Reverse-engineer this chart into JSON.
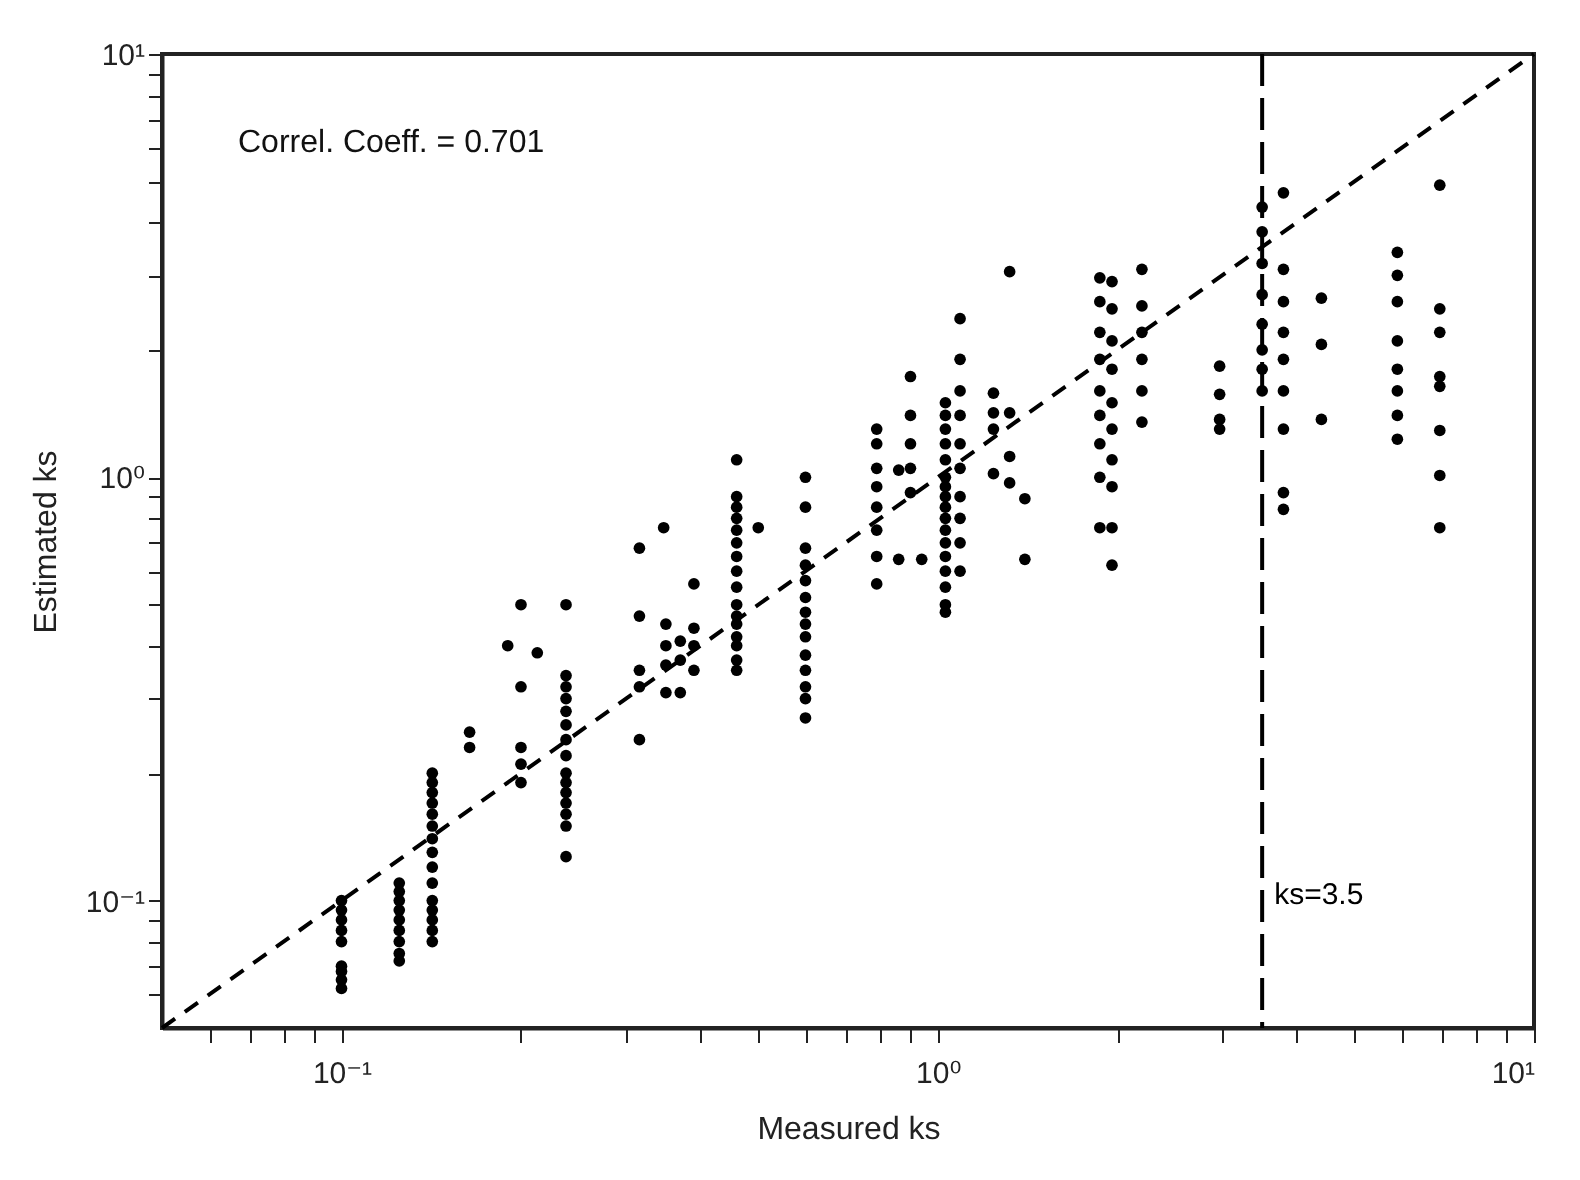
{
  "chart_data": {
    "type": "scatter",
    "xlabel": "Measured ks",
    "ylabel": "Estimated ks",
    "annotations": [
      "Correl. Coeff. = 0.701"
    ],
    "xlim": [
      0.05,
      10
    ],
    "ylim": [
      0.05,
      10
    ],
    "xticks": [
      {
        "value": 0.06,
        "label": null
      },
      {
        "value": 0.07,
        "label": null
      },
      {
        "value": 0.08,
        "label": null
      },
      {
        "value": 0.09,
        "label": null
      },
      {
        "value": 0.1,
        "label": "10⁻¹"
      },
      {
        "value": 0.2,
        "label": null
      },
      {
        "value": 0.3,
        "label": null
      },
      {
        "value": 0.4,
        "label": null
      },
      {
        "value": 0.5,
        "label": null
      },
      {
        "value": 0.6,
        "label": null
      },
      {
        "value": 0.7,
        "label": null
      },
      {
        "value": 0.8,
        "label": null
      },
      {
        "value": 0.9,
        "label": null
      },
      {
        "value": 1,
        "label": "10⁰"
      },
      {
        "value": 2,
        "label": null
      },
      {
        "value": 3,
        "label": null
      },
      {
        "value": 4,
        "label": null
      },
      {
        "value": 5,
        "label": null
      },
      {
        "value": 6,
        "label": null
      },
      {
        "value": 7,
        "label": null
      },
      {
        "value": 8,
        "label": null
      },
      {
        "value": 9,
        "label": null
      },
      {
        "value": 10,
        "label": "10¹"
      }
    ],
    "yticks": [
      {
        "value": 0.06,
        "label": null
      },
      {
        "value": 0.07,
        "label": null
      },
      {
        "value": 0.08,
        "label": null
      },
      {
        "value": 0.09,
        "label": null
      },
      {
        "value": 0.1,
        "label": "10⁻¹"
      },
      {
        "value": 0.2,
        "label": null
      },
      {
        "value": 0.3,
        "label": null
      },
      {
        "value": 0.4,
        "label": null
      },
      {
        "value": 0.5,
        "label": null
      },
      {
        "value": 0.6,
        "label": null
      },
      {
        "value": 0.7,
        "label": null
      },
      {
        "value": 0.8,
        "label": null
      },
      {
        "value": 0.9,
        "label": null
      },
      {
        "value": 1,
        "label": "10⁰"
      },
      {
        "value": 2,
        "label": null
      },
      {
        "value": 3,
        "label": null
      },
      {
        "value": 4,
        "label": null
      },
      {
        "value": 5,
        "label": null
      },
      {
        "value": 6,
        "label": null
      },
      {
        "value": 7,
        "label": null
      },
      {
        "value": 8,
        "label": null
      },
      {
        "value": 9,
        "label": null
      },
      {
        "value": 10,
        "label": "10¹"
      }
    ],
    "log": "xy",
    "grid": false,
    "marker": "circle",
    "ref_lines": [
      {
        "axis": "x",
        "value": 3.5,
        "label": "ks=3.5",
        "color": "#000000",
        "line_style": "dashed"
      }
    ],
    "series": [
      {
        "color": "#000000",
        "x": [
          0.1,
          0.1,
          0.1,
          0.1,
          0.1,
          0.1,
          0.1,
          0.1,
          0.1,
          0.125,
          0.125,
          0.125,
          0.125,
          0.125,
          0.125,
          0.125,
          0.125,
          0.125,
          0.142,
          0.142,
          0.142,
          0.142,
          0.142,
          0.142,
          0.142,
          0.142,
          0.142,
          0.142,
          0.142,
          0.142,
          0.142,
          0.142,
          0.142,
          0.164,
          0.164,
          0.19,
          0.2,
          0.2,
          0.2,
          0.2,
          0.2,
          0.213,
          0.238,
          0.238,
          0.238,
          0.238,
          0.238,
          0.238,
          0.238,
          0.238,
          0.238,
          0.238,
          0.238,
          0.238,
          0.238,
          0.238,
          0.238,
          0.316,
          0.316,
          0.316,
          0.316,
          0.316,
          0.35,
          0.35,
          0.35,
          0.35,
          0.347,
          0.37,
          0.37,
          0.37,
          0.39,
          0.39,
          0.39,
          0.39,
          0.46,
          0.46,
          0.46,
          0.46,
          0.46,
          0.46,
          0.46,
          0.46,
          0.46,
          0.46,
          0.46,
          0.46,
          0.46,
          0.46,
          0.46,
          0.46,
          0.5,
          0.6,
          0.6,
          0.6,
          0.6,
          0.6,
          0.6,
          0.6,
          0.6,
          0.6,
          0.6,
          0.6,
          0.6,
          0.6,
          0.6,
          0.79,
          0.79,
          0.79,
          0.79,
          0.79,
          0.79,
          0.79,
          0.79,
          0.86,
          0.86,
          0.9,
          0.9,
          0.9,
          0.9,
          0.9,
          0.94,
          1.03,
          1.03,
          1.03,
          1.03,
          1.03,
          1.03,
          1.03,
          1.03,
          1.03,
          1.03,
          1.03,
          1.03,
          1.03,
          1.03,
          1.03,
          1.03,
          1.03,
          1.09,
          1.09,
          1.09,
          1.09,
          1.09,
          1.09,
          1.09,
          1.09,
          1.09,
          1.09,
          1.24,
          1.24,
          1.24,
          1.24,
          1.32,
          1.32,
          1.32,
          1.32,
          1.4,
          1.4,
          1.87,
          1.87,
          1.87,
          1.87,
          1.87,
          1.87,
          1.87,
          1.87,
          1.87,
          1.96,
          1.96,
          1.96,
          1.96,
          1.96,
          1.96,
          1.96,
          1.96,
          1.96,
          1.96,
          2.2,
          2.2,
          2.2,
          2.2,
          2.2,
          2.2,
          2.97,
          2.97,
          2.97,
          2.97,
          3.5,
          3.5,
          3.5,
          3.5,
          3.5,
          3.5,
          3.5,
          3.5,
          3.8,
          3.8,
          3.8,
          3.8,
          3.8,
          3.8,
          3.8,
          3.8,
          3.8,
          4.4,
          4.4,
          4.4,
          5.9,
          5.9,
          5.9,
          5.9,
          5.9,
          5.9,
          5.9,
          5.9,
          6.95,
          6.95,
          6.95,
          6.95,
          6.95,
          6.95,
          6.95,
          6.95
        ],
        "values": [
          0.1,
          0.095,
          0.09,
          0.085,
          0.08,
          0.07,
          0.068,
          0.065,
          0.062,
          0.11,
          0.105,
          0.1,
          0.095,
          0.09,
          0.085,
          0.08,
          0.075,
          0.072,
          0.2,
          0.19,
          0.18,
          0.17,
          0.16,
          0.15,
          0.14,
          0.13,
          0.12,
          0.11,
          0.1,
          0.095,
          0.09,
          0.085,
          0.08,
          0.25,
          0.23,
          0.4,
          0.5,
          0.32,
          0.23,
          0.21,
          0.19,
          0.385,
          0.5,
          0.34,
          0.32,
          0.3,
          0.28,
          0.26,
          0.24,
          0.22,
          0.2,
          0.19,
          0.18,
          0.17,
          0.16,
          0.15,
          0.127,
          0.68,
          0.47,
          0.35,
          0.32,
          0.24,
          0.45,
          0.4,
          0.36,
          0.31,
          0.76,
          0.41,
          0.37,
          0.31,
          0.56,
          0.44,
          0.4,
          0.35,
          1.1,
          0.9,
          0.85,
          0.8,
          0.75,
          0.7,
          0.65,
          0.6,
          0.55,
          0.5,
          0.47,
          0.45,
          0.42,
          0.4,
          0.37,
          0.35,
          0.76,
          1.0,
          0.85,
          0.68,
          0.62,
          0.57,
          0.52,
          0.48,
          0.45,
          0.42,
          0.38,
          0.35,
          0.32,
          0.3,
          0.27,
          1.3,
          1.2,
          1.05,
          0.95,
          0.85,
          0.75,
          0.65,
          0.56,
          1.04,
          0.64,
          1.73,
          1.4,
          1.2,
          1.05,
          0.92,
          0.64,
          1.5,
          1.4,
          1.3,
          1.2,
          1.1,
          1.0,
          0.95,
          0.9,
          0.85,
          0.8,
          0.75,
          0.7,
          0.65,
          0.6,
          0.55,
          0.5,
          0.48,
          2.37,
          1.9,
          1.6,
          1.4,
          1.2,
          1.05,
          0.9,
          0.8,
          0.7,
          0.6,
          1.58,
          1.42,
          1.3,
          1.02,
          3.06,
          1.42,
          1.12,
          0.97,
          0.89,
          0.64,
          2.96,
          2.6,
          2.2,
          1.9,
          1.6,
          1.4,
          1.2,
          1.0,
          0.76,
          2.9,
          2.5,
          2.1,
          1.8,
          1.5,
          1.3,
          1.1,
          0.95,
          0.76,
          0.62,
          3.1,
          2.54,
          2.2,
          1.9,
          1.6,
          1.35,
          1.83,
          1.57,
          1.37,
          1.3,
          4.35,
          3.8,
          3.2,
          2.7,
          2.3,
          2.0,
          1.8,
          1.6,
          4.7,
          3.1,
          2.6,
          2.2,
          1.9,
          1.6,
          1.3,
          0.92,
          0.84,
          2.65,
          2.06,
          1.37,
          3.4,
          3.0,
          2.6,
          2.1,
          1.8,
          1.6,
          1.4,
          1.23,
          4.9,
          2.5,
          2.2,
          1.73,
          1.64,
          1.29,
          1.01,
          0.76
        ]
      },
      {
        "type": "line",
        "color": "#000000",
        "line_style": "dashed",
        "marker": "none",
        "x": [
          0.05,
          10
        ],
        "values": [
          0.05,
          10
        ]
      }
    ]
  }
}
